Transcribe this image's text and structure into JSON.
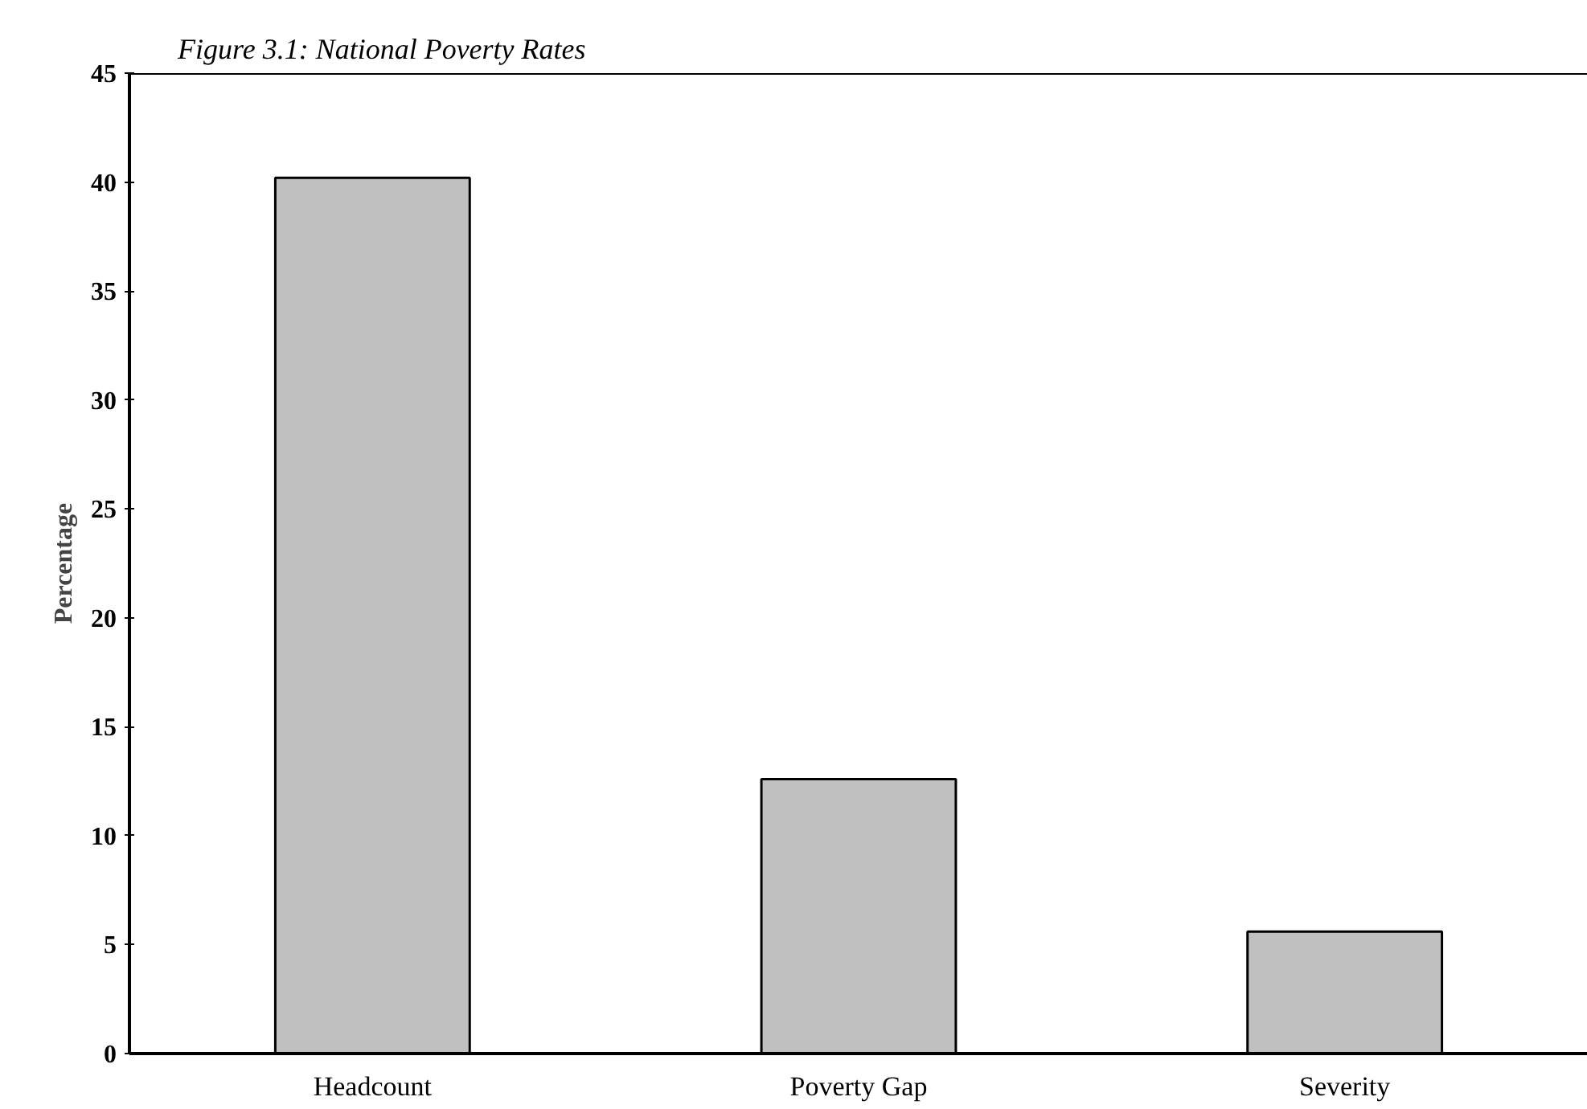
{
  "chart_data": {
    "type": "bar",
    "title": "Figure 3.1: National Poverty Rates",
    "ylabel": "Percentage",
    "categories": [
      "Headcount",
      "Poverty Gap",
      "Severity"
    ],
    "values": [
      40.2,
      12.6,
      5.6
    ],
    "color": "#c0c0c0",
    "ylim": [
      0,
      45
    ],
    "yticks": [
      0,
      5,
      10,
      15,
      20,
      25,
      30,
      35,
      40,
      45
    ],
    "grid": false
  }
}
